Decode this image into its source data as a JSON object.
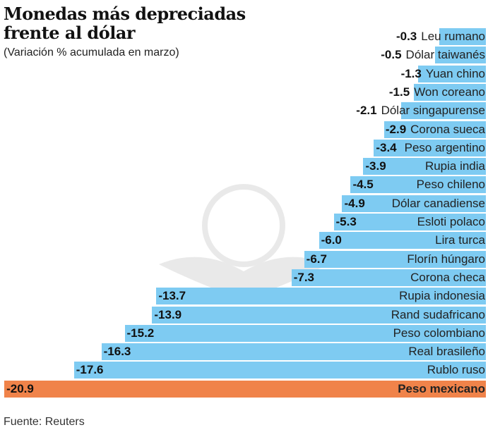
{
  "chart_data": {
    "type": "bar",
    "orientation": "horizontal",
    "title": "Monedas más depreciadas frente al dólar",
    "title_lines": [
      "Monedas más depreciadas",
      "frente al dólar"
    ],
    "subtitle": "(Variación % acumulada en marzo)",
    "source": "Fuente: Reuters",
    "categories": [
      "Leu rumano",
      "Dólar taiwanés",
      "Yuan chino",
      "Won coreano",
      "Dólar singapurense",
      "Corona sueca",
      "Peso argentino",
      "Rupia india",
      "Peso chileno",
      "Dólar canadiense",
      "Esloti polaco",
      "Lira turca",
      "Florín húngaro",
      "Corona checa",
      "Rupia indonesia",
      "Rand sudafricano",
      "Peso colombiano",
      "Real brasileño",
      "Rublo ruso",
      "Peso mexicano"
    ],
    "values": [
      -0.3,
      -0.5,
      -1.3,
      -1.5,
      -2.1,
      -2.9,
      -3.4,
      -3.9,
      -4.5,
      -4.9,
      -5.3,
      -6.0,
      -6.7,
      -7.3,
      -13.7,
      -13.9,
      -15.2,
      -16.3,
      -17.6,
      -20.9
    ],
    "value_labels": [
      "-0.3",
      "-0.5",
      "-1.3",
      "-1.5",
      "-2.1",
      "-2.9",
      "-3.4",
      "-3.9",
      "-4.5",
      "-4.9",
      "-5.3",
      "-6.0",
      "-6.7",
      "-7.3",
      "-13.7",
      "-13.9",
      "-15.2",
      "-16.3",
      "-17.6",
      "-20.9"
    ],
    "highlight": "Peso mexicano",
    "colors": {
      "bar": "#7ecbf2",
      "highlight": "#f0834a"
    },
    "axis": false,
    "grid": false,
    "legend": "none"
  }
}
